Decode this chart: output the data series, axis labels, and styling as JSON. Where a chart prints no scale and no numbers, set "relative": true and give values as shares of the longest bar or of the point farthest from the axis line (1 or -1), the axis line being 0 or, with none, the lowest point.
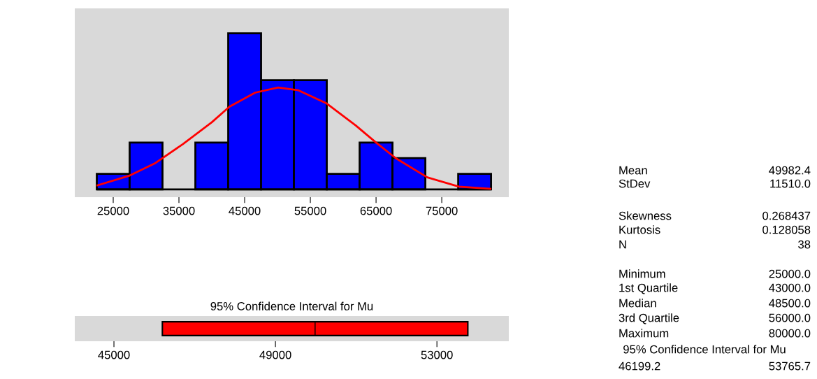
{
  "chart_data": [
    {
      "type": "histogram",
      "relative": true,
      "bins": [
        22500,
        27500,
        32500,
        37500,
        42500,
        47500,
        52500,
        57500,
        62500,
        67500,
        72500,
        77500,
        82500
      ],
      "values": [
        0.1,
        0.3,
        0,
        0.3,
        1,
        0.7,
        0.7,
        0.1,
        0.3,
        0.2,
        0,
        0.1
      ],
      "color": "#0000ff",
      "xlim": [
        19150,
        85200
      ],
      "xticks": [
        25000,
        35000,
        45000,
        55000,
        65000,
        75000
      ],
      "series": [
        {
          "type": "line",
          "color": "#ff0000",
          "x": [
            22600,
            27400,
            31300,
            35600,
            40000,
            42700,
            46600,
            50100,
            53200,
            57500,
            61900,
            65000,
            68000,
            72800,
            77600,
            82400
          ],
          "values": [
            0.026,
            0.087,
            0.166,
            0.29,
            0.43,
            0.53,
            0.62,
            0.653,
            0.635,
            0.55,
            0.41,
            0.3,
            0.2,
            0.077,
            0.018,
            0.004
          ]
        }
      ]
    },
    {
      "type": "bar",
      "orientation": "horizontal",
      "title": "95% Confidence Interval for Mu",
      "categories": [
        null
      ],
      "base": [
        46199.2
      ],
      "values": [
        7566.5
      ],
      "colors": [
        "#ff0000"
      ],
      "xlim": [
        44030,
        54780
      ],
      "xticks": [
        45000,
        49000,
        53000
      ],
      "ref_lines": [
        {
          "axis": "x",
          "value": 49982.4,
          "color": "#000000"
        }
      ]
    },
    {
      "type": "other",
      "annotations": [
        "Mean",
        "49982.4",
        "StDev",
        "11510.0",
        "Skewness",
        "0.268437",
        "Kurtosis",
        "0.128058",
        "N",
        "38",
        "Minimum",
        "25000.0",
        "1st Quartile",
        "43000.0",
        "Median",
        "48500.0",
        "3rd Quartile",
        "56000.0",
        "Maximum",
        "80000.0",
        "95% Confidence Interval for Mu",
        "46199.2",
        "53765.7"
      ]
    }
  ]
}
